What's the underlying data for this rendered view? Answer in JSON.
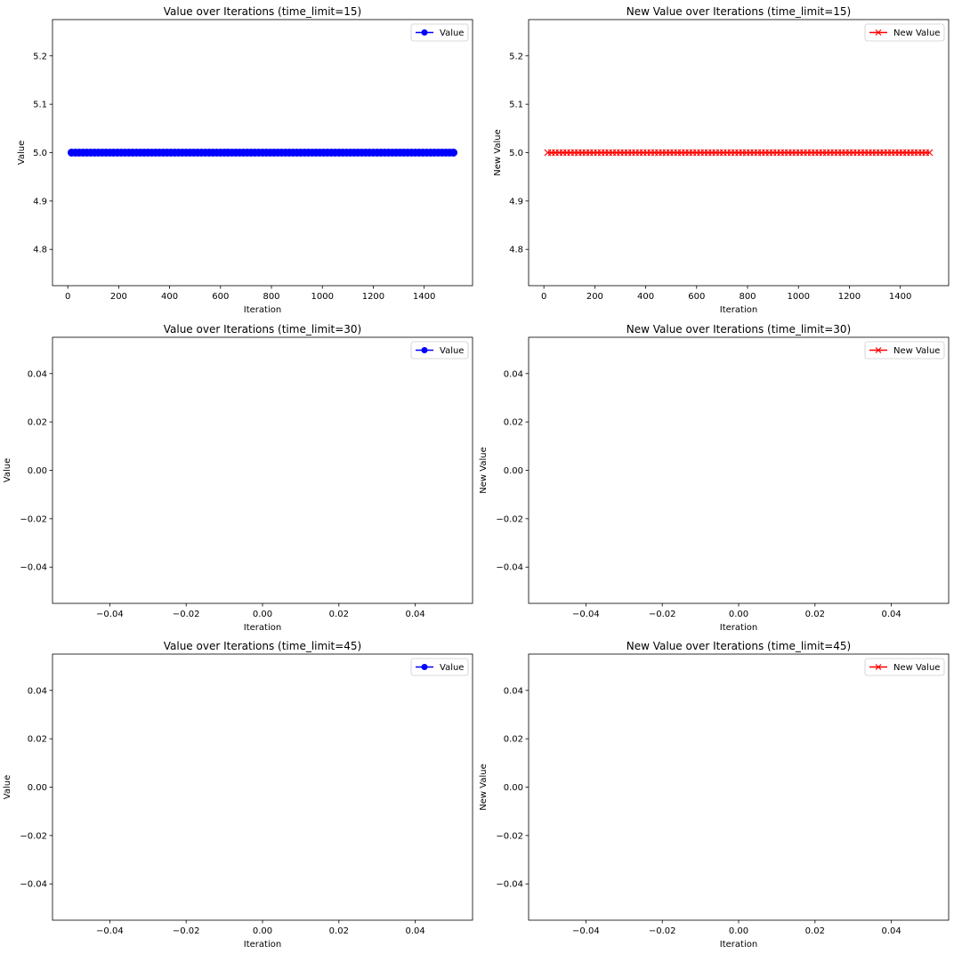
{
  "chart_data": [
    {
      "type": "line",
      "title": "Value over Iterations (time_limit=15)",
      "xlabel": "Iteration",
      "ylabel": "Value",
      "xlim": [
        -60,
        1590
      ],
      "ylim": [
        4.725,
        5.275
      ],
      "xticks": [
        0,
        200,
        400,
        600,
        800,
        1000,
        1200,
        1400
      ],
      "yticks": [
        4.8,
        4.9,
        5.0,
        5.1,
        5.2
      ],
      "ytick_labels": [
        "4.8",
        "4.9",
        "5.0",
        "5.1",
        "5.2"
      ],
      "legend_position": "upper right",
      "series": [
        {
          "name": "Value",
          "color": "#0000ff",
          "marker": "circle",
          "x_range": [
            15,
            1515
          ],
          "x_step": 15,
          "value": 5.0
        }
      ]
    },
    {
      "type": "line",
      "title": "New Value over Iterations (time_limit=15)",
      "xlabel": "Iteration",
      "ylabel": "New Value",
      "xlim": [
        -60,
        1590
      ],
      "ylim": [
        4.725,
        5.275
      ],
      "xticks": [
        0,
        200,
        400,
        600,
        800,
        1000,
        1200,
        1400
      ],
      "yticks": [
        4.8,
        4.9,
        5.0,
        5.1,
        5.2
      ],
      "ytick_labels": [
        "4.8",
        "4.9",
        "5.0",
        "5.1",
        "5.2"
      ],
      "legend_position": "upper right",
      "series": [
        {
          "name": "New Value",
          "color": "#ff0000",
          "marker": "x",
          "x_range": [
            15,
            1515
          ],
          "x_step": 15,
          "value": 5.0
        }
      ]
    },
    {
      "type": "line",
      "title": "Value over Iterations (time_limit=30)",
      "xlabel": "Iteration",
      "ylabel": "Value",
      "xlim": [
        -0.055,
        0.055
      ],
      "ylim": [
        -0.055,
        0.055
      ],
      "xticks": [
        -0.04,
        -0.02,
        0.0,
        0.02,
        0.04
      ],
      "xtick_labels": [
        "−0.04",
        "−0.02",
        "0.00",
        "0.02",
        "0.04"
      ],
      "yticks": [
        -0.04,
        -0.02,
        0.0,
        0.02,
        0.04
      ],
      "ytick_labels": [
        "−0.04",
        "−0.02",
        "0.00",
        "0.02",
        "0.04"
      ],
      "legend_position": "upper right",
      "series": [
        {
          "name": "Value",
          "color": "#0000ff",
          "marker": "circle",
          "values": []
        }
      ]
    },
    {
      "type": "line",
      "title": "New Value over Iterations (time_limit=30)",
      "xlabel": "Iteration",
      "ylabel": "New Value",
      "xlim": [
        -0.055,
        0.055
      ],
      "ylim": [
        -0.055,
        0.055
      ],
      "xticks": [
        -0.04,
        -0.02,
        0.0,
        0.02,
        0.04
      ],
      "xtick_labels": [
        "−0.04",
        "−0.02",
        "0.00",
        "0.02",
        "0.04"
      ],
      "yticks": [
        -0.04,
        -0.02,
        0.0,
        0.02,
        0.04
      ],
      "ytick_labels": [
        "−0.04",
        "−0.02",
        "0.00",
        "0.02",
        "0.04"
      ],
      "legend_position": "upper right",
      "series": [
        {
          "name": "New Value",
          "color": "#ff0000",
          "marker": "x",
          "values": []
        }
      ]
    },
    {
      "type": "line",
      "title": "Value over Iterations (time_limit=45)",
      "xlabel": "Iteration",
      "ylabel": "Value",
      "xlim": [
        -0.055,
        0.055
      ],
      "ylim": [
        -0.055,
        0.055
      ],
      "xticks": [
        -0.04,
        -0.02,
        0.0,
        0.02,
        0.04
      ],
      "xtick_labels": [
        "−0.04",
        "−0.02",
        "0.00",
        "0.02",
        "0.04"
      ],
      "yticks": [
        -0.04,
        -0.02,
        0.0,
        0.02,
        0.04
      ],
      "ytick_labels": [
        "−0.04",
        "−0.02",
        "0.00",
        "0.02",
        "0.04"
      ],
      "legend_position": "upper right",
      "series": [
        {
          "name": "Value",
          "color": "#0000ff",
          "marker": "circle",
          "values": []
        }
      ]
    },
    {
      "type": "line",
      "title": "New Value over Iterations (time_limit=45)",
      "xlabel": "Iteration",
      "ylabel": "New Value",
      "xlim": [
        -0.055,
        0.055
      ],
      "ylim": [
        -0.055,
        0.055
      ],
      "xticks": [
        -0.04,
        -0.02,
        0.0,
        0.02,
        0.04
      ],
      "xtick_labels": [
        "−0.04",
        "−0.02",
        "0.00",
        "0.02",
        "0.04"
      ],
      "yticks": [
        -0.04,
        -0.02,
        0.0,
        0.02,
        0.04
      ],
      "ytick_labels": [
        "−0.04",
        "−0.02",
        "0.00",
        "0.02",
        "0.04"
      ],
      "legend_position": "upper right",
      "series": [
        {
          "name": "New Value",
          "color": "#ff0000",
          "marker": "x",
          "values": []
        }
      ]
    }
  ]
}
